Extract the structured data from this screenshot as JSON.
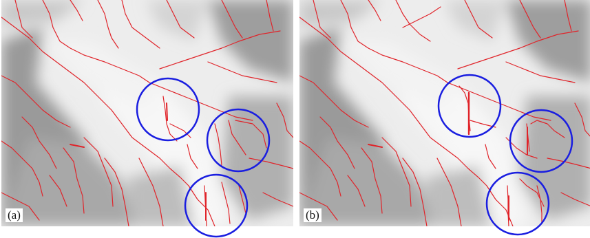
{
  "figure": {
    "panels": [
      {
        "label": "(a)"
      },
      {
        "label": "(b)"
      }
    ],
    "colors": {
      "stream": "#e0242a",
      "circle": "#1a1ee0",
      "terrain_light": "#f4f4f4",
      "terrain_dark": "#8e8e8e"
    }
  }
}
